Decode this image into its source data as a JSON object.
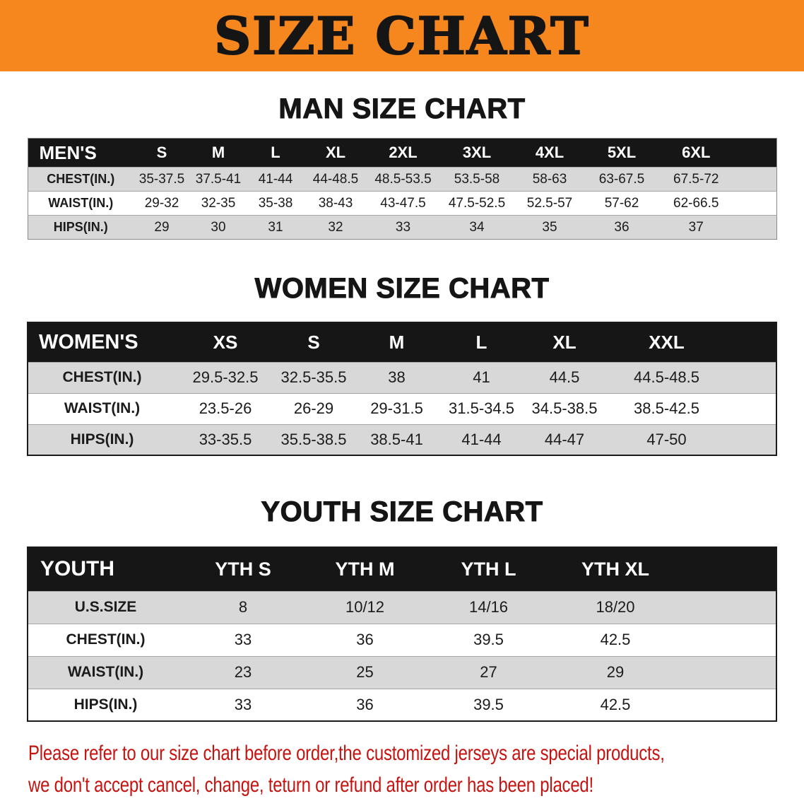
{
  "banner": {
    "title": "SIZE CHART"
  },
  "sections": [
    {
      "heading": "MAN SIZE CHART",
      "table": {
        "label": "MEN'S",
        "columns": [
          "S",
          "M",
          "L",
          "XL",
          "2XL",
          "3XL",
          "4XL",
          "5XL",
          "6XL"
        ],
        "rows": [
          {
            "label": "CHEST(IN.)",
            "values": [
              "35-37.5",
              "37.5-41",
              "41-44",
              "44-48.5",
              "48.5-53.5",
              "53.5-58",
              "58-63",
              "63-67.5",
              "67.5-72"
            ]
          },
          {
            "label": "WAIST(IN.)",
            "values": [
              "29-32",
              "32-35",
              "35-38",
              "38-43",
              "43-47.5",
              "47.5-52.5",
              "52.5-57",
              "57-62",
              "62-66.5"
            ]
          },
          {
            "label": "HIPS(IN.)",
            "values": [
              "29",
              "30",
              "31",
              "32",
              "33",
              "34",
              "35",
              "36",
              "37"
            ]
          }
        ]
      }
    },
    {
      "heading": "WOMEN SIZE CHART",
      "table": {
        "label": "WOMEN'S",
        "columns": [
          "XS",
          "S",
          "M",
          "L",
          "XL",
          "XXL"
        ],
        "rows": [
          {
            "label": "CHEST(IN.)",
            "values": [
              "29.5-32.5",
              "32.5-35.5",
              "38",
              "41",
              "44.5",
              "44.5-48.5"
            ]
          },
          {
            "label": "WAIST(IN.)",
            "values": [
              "23.5-26",
              "26-29",
              "29-31.5",
              "31.5-34.5",
              "34.5-38.5",
              "38.5-42.5"
            ]
          },
          {
            "label": "HIPS(IN.)",
            "values": [
              "33-35.5",
              "35.5-38.5",
              "38.5-41",
              "41-44",
              "44-47",
              "47-50"
            ]
          }
        ]
      }
    },
    {
      "heading": "YOUTH SIZE CHART",
      "table": {
        "label": "YOUTH",
        "columns": [
          "YTH S",
          "YTH M",
          "YTH L",
          "YTH XL"
        ],
        "rows": [
          {
            "label": "U.S.SIZE",
            "values": [
              "8",
              "10/12",
              "14/16",
              "18/20"
            ]
          },
          {
            "label": "CHEST(IN.)",
            "values": [
              "33",
              "36",
              "39.5",
              "42.5"
            ]
          },
          {
            "label": "WAIST(IN.)",
            "values": [
              "23",
              "25",
              "27",
              "29"
            ]
          },
          {
            "label": "HIPS(IN.)",
            "values": [
              "33",
              "36",
              "39.5",
              "42.5"
            ]
          }
        ]
      }
    }
  ],
  "footer": {
    "line1": "Please refer to our size chart before order,the customized jerseys are special products,",
    "line2": "we don't accept cancel, change, teturn or refund after order has been placed!"
  },
  "theme": {
    "banner_bg": "#f6861e",
    "header_bg": "#161616",
    "stripe_gray": "#d8d8d8",
    "footer_red": "#c61310",
    "title_black": "#151515"
  }
}
